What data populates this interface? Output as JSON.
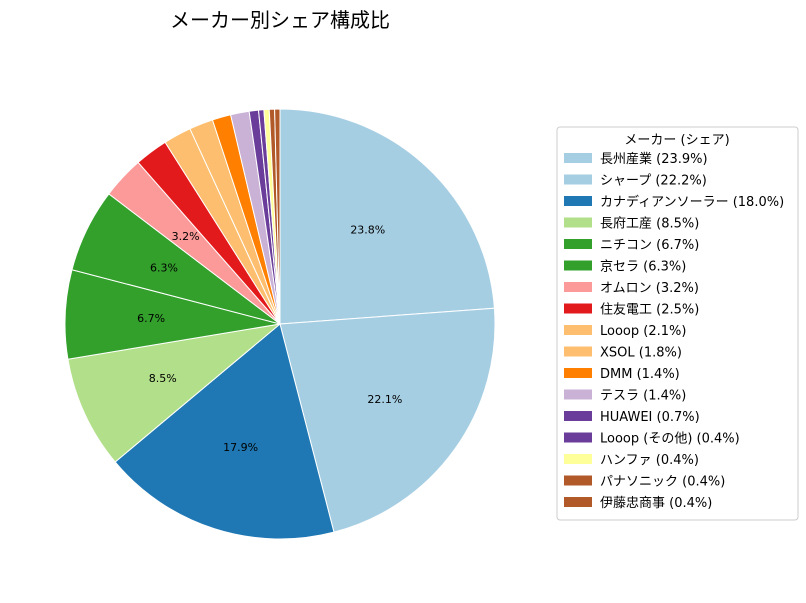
{
  "chart_data": {
    "type": "pie",
    "title": "メーカー別シェア構成比",
    "legend_title": "メーカー (シェア)",
    "legend_position": "right",
    "start_angle_deg": 90,
    "direction": "clockwise",
    "slices": [
      {
        "label": "長州産業 (23.9%)",
        "value": 23.9,
        "pct_label": "23.8%",
        "color": "#a6cee3"
      },
      {
        "label": "シャープ (22.2%)",
        "value": 22.2,
        "pct_label": "22.1%",
        "color": "#a6cee3"
      },
      {
        "label": "カナディアンソーラー (18.0%)",
        "value": 18.0,
        "pct_label": "17.9%",
        "color": "#1f78b4"
      },
      {
        "label": "長府工産 (8.5%)",
        "value": 8.5,
        "pct_label": "8.5%",
        "color": "#b2df8a"
      },
      {
        "label": "ニチコン (6.7%)",
        "value": 6.7,
        "pct_label": "6.7%",
        "color": "#33a02c"
      },
      {
        "label": "京セラ (6.3%)",
        "value": 6.3,
        "pct_label": "6.3%",
        "color": "#33a02c"
      },
      {
        "label": "オムロン (3.2%)",
        "value": 3.2,
        "pct_label": "3.2%",
        "color": "#fb9a99"
      },
      {
        "label": "住友電工 (2.5%)",
        "value": 2.5,
        "pct_label": "",
        "color": "#e31a1c"
      },
      {
        "label": "Looop (2.1%)",
        "value": 2.1,
        "pct_label": "",
        "color": "#fdbf6f"
      },
      {
        "label": "XSOL (1.8%)",
        "value": 1.8,
        "pct_label": "",
        "color": "#fdbf6f"
      },
      {
        "label": "DMM (1.4%)",
        "value": 1.4,
        "pct_label": "",
        "color": "#ff7f00"
      },
      {
        "label": "テスラ (1.4%)",
        "value": 1.4,
        "pct_label": "",
        "color": "#cab2d6"
      },
      {
        "label": "HUAWEI (0.7%)",
        "value": 0.7,
        "pct_label": "",
        "color": "#6a3d9a"
      },
      {
        "label": "Looop (その他) (0.4%)",
        "value": 0.4,
        "pct_label": "",
        "color": "#6a3d9a"
      },
      {
        "label": "ハンファ (0.4%)",
        "value": 0.4,
        "pct_label": "",
        "color": "#ffff99"
      },
      {
        "label": "パナソニック (0.4%)",
        "value": 0.4,
        "pct_label": "",
        "color": "#b15928"
      },
      {
        "label": "伊藤忠商事 (0.4%)",
        "value": 0.4,
        "pct_label": "",
        "color": "#b15928"
      }
    ]
  }
}
